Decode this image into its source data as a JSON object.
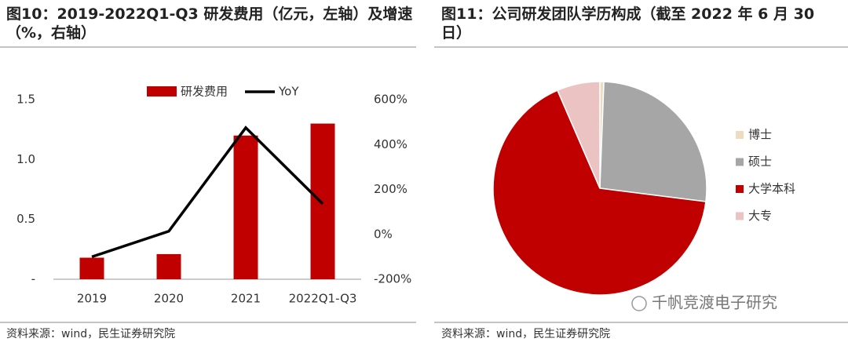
{
  "chart_data": [
    {
      "type": "bar",
      "title": "图10：2019-2022Q1-Q3 研发费用（亿元，左轴）及增速（%，右轴）",
      "categories": [
        "2019",
        "2020",
        "2021",
        "2022Q1-Q3"
      ],
      "series": [
        {
          "name": "研发费用",
          "color": "#c00000",
          "type": "bar",
          "values": [
            0.18,
            0.21,
            1.2,
            1.3
          ]
        },
        {
          "name": "YoY",
          "color": "#000000",
          "type": "line",
          "axis": "y2",
          "values": [
            -100,
            14,
            475,
            136
          ]
        }
      ],
      "ylim": [
        0,
        1.5
      ],
      "yticks": [
        {
          "value": 0,
          "label": "-"
        },
        0.5,
        {
          "value": 1,
          "label": "1.0"
        },
        {
          "value": 1.5,
          "label": "1.5"
        }
      ],
      "y2lim": [
        -200,
        600
      ],
      "y2ticks": [
        {
          "value": -200,
          "label": "-200%"
        },
        {
          "value": 0,
          "label": "0%"
        },
        {
          "value": 200,
          "label": "200%"
        },
        {
          "value": 400,
          "label": "400%"
        },
        {
          "value": 600,
          "label": "600%"
        }
      ],
      "source": "资料来源：wind，民生证券研究院"
    },
    {
      "type": "pie",
      "title": "图11：公司研发团队学历构成（截至 2022 年 6 月 30 日）",
      "categories": [
        "博士",
        "硕士",
        "大学本科",
        "大专"
      ],
      "values": [
        0.6,
        26.4,
        66.5,
        6.5
      ],
      "colors": [
        "#efdcc0",
        "#a6a6a6",
        "#c00000",
        "#ebc3c3"
      ],
      "source": "资料来源：wind，民生证券研究院",
      "watermark": "千帆竞渡电子研究"
    }
  ]
}
